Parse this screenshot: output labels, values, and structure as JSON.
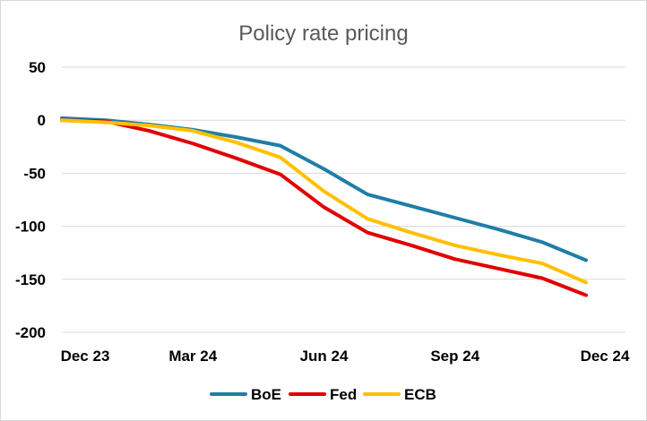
{
  "chart_data": {
    "type": "line",
    "title": "Policy rate pricing",
    "xlabel": "",
    "ylabel": "",
    "ylim": [
      -200,
      50
    ],
    "yticks": [
      50,
      0,
      -50,
      -100,
      -150,
      -200
    ],
    "x": [
      "Dec 23",
      "Jan 24",
      "Feb 24",
      "Mar 24",
      "Apr 24",
      "May 24",
      "Jun 24",
      "Jul 24",
      "Aug 24",
      "Sep 24",
      "Oct 24",
      "Nov 24",
      "Dec 24"
    ],
    "xtick_labels": [
      "Dec 23",
      "Mar 24",
      "Jun 24",
      "Sep 24",
      "Dec 24"
    ],
    "grid": true,
    "legend": "bottom",
    "series": [
      {
        "name": "BoE",
        "color": "#1f7ea6",
        "values": [
          2,
          0,
          -4,
          -9,
          -16,
          -24,
          -46,
          -70,
          -81,
          -92,
          -103,
          -115,
          -132
        ]
      },
      {
        "name": "Fed",
        "color": "#e00000",
        "values": [
          0,
          -1,
          -10,
          -22,
          -36,
          -51,
          -82,
          -106,
          -118,
          -131,
          -140,
          -149,
          -165
        ]
      },
      {
        "name": "ECB",
        "color": "#ffc000",
        "values": [
          0,
          -2,
          -5,
          -10,
          -21,
          -35,
          -67,
          -93,
          -106,
          -118,
          -127,
          -135,
          -153
        ]
      }
    ]
  }
}
